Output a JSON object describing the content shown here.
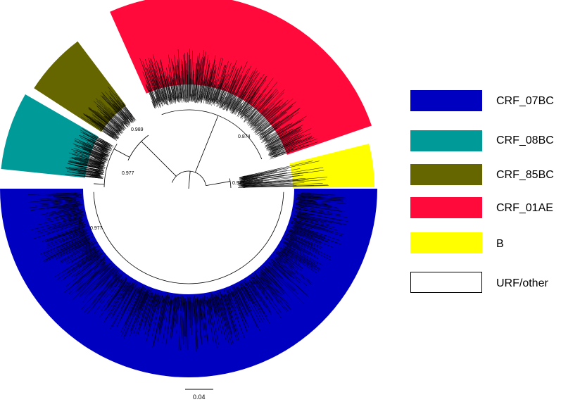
{
  "figure": {
    "legend": [
      {
        "label": "CRF_07BC",
        "color": "#0000c0"
      },
      {
        "label": "CRF_08BC",
        "color": "#009a99"
      },
      {
        "label": "CRF_85BC",
        "color": "#666600"
      },
      {
        "label": "CRF_01AE",
        "color": "#ff0a3a"
      },
      {
        "label": "B",
        "color": "#ffff00"
      },
      {
        "label": "URF/other",
        "color": "#ffffff"
      }
    ],
    "bootstrap_values": [
      "0.874",
      "0.942",
      "0.989",
      "0.977",
      "0.977"
    ],
    "scale_bar": "0.04"
  }
}
